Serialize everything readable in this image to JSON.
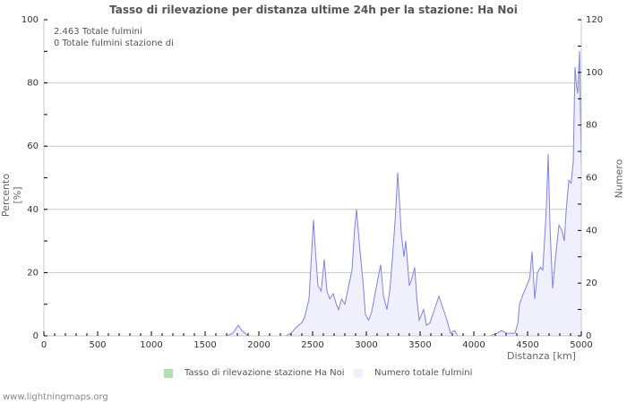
{
  "title": "Tasso di rilevazione per distanza ultime 24h per la stazione: Ha Noi",
  "info": {
    "line1": "2.463 Totale fulmini",
    "line2": "0 Totale fulmini stazione di"
  },
  "axes": {
    "y_left_label": "Percento   [%]",
    "y_right_label": "Numero",
    "x_label": "Distanza   [km]"
  },
  "legend": {
    "item1": {
      "label": "Tasso di rilevazione stazione Ha Noi",
      "color": "#b3e0b3"
    },
    "item2": {
      "label": "Numero totale fulmini",
      "color": "#eeeeff"
    }
  },
  "footer": "www.lightningmaps.org",
  "colors": {
    "line": "#8080ee",
    "fill": "#f0f0fc",
    "grid": "#c8c8c8",
    "axis": "#c8c8c8"
  },
  "chart_data": {
    "type": "area",
    "title": "Tasso di rilevazione per distanza ultime 24h per la stazione: Ha Noi",
    "xlabel": "Distanza [km]",
    "ylabel": "Percento [%]",
    "ylabel_right": "Numero",
    "xlim": [
      0,
      5000
    ],
    "ylim": [
      0,
      100
    ],
    "ylim_right": [
      0,
      120
    ],
    "x_ticks": [
      0,
      500,
      1000,
      1500,
      2000,
      2500,
      3000,
      3500,
      4000,
      4500,
      5000
    ],
    "y_ticks_left": [
      0,
      20,
      40,
      60,
      80,
      100
    ],
    "y_ticks_right": [
      0,
      20,
      40,
      60,
      80,
      100,
      120
    ],
    "grid": true,
    "legend_position": "bottom",
    "series": [
      {
        "name": "Tasso di rilevazione stazione Ha Noi",
        "axis": "left",
        "x": [],
        "values": []
      },
      {
        "name": "Numero totale fulmini",
        "axis": "right",
        "x": [
          0,
          1700,
          1758,
          1808,
          1842,
          1900,
          2250,
          2300,
          2342,
          2400,
          2425,
          2467,
          2508,
          2530,
          2550,
          2580,
          2608,
          2633,
          2660,
          2692,
          2720,
          2742,
          2770,
          2800,
          2830,
          2867,
          2890,
          2908,
          2942,
          2970,
          2992,
          3020,
          3050,
          3090,
          3133,
          3160,
          3192,
          3220,
          3242,
          3270,
          3292,
          3310,
          3325,
          3350,
          3367,
          3400,
          3425,
          3450,
          3470,
          3492,
          3533,
          3560,
          3592,
          3633,
          3675,
          3717,
          3750,
          3783,
          3820,
          3850,
          3900,
          4150,
          4217,
          4260,
          4300,
          4383,
          4410,
          4425,
          4450,
          4492,
          4520,
          4542,
          4567,
          4592,
          4620,
          4642,
          4660,
          4675,
          4692,
          4710,
          4733,
          4758,
          4792,
          4820,
          4842,
          4860,
          4883,
          4905,
          4925,
          4942,
          4955,
          4967,
          4983,
          4992,
          5000
        ],
        "values": [
          0,
          0,
          1,
          4,
          2,
          0,
          0,
          1,
          3,
          5,
          7,
          14,
          44,
          30,
          19,
          17,
          29,
          17,
          14,
          16,
          12,
          10,
          14,
          12,
          18,
          25,
          40,
          48,
          32,
          20,
          8,
          6,
          9,
          18,
          27,
          15,
          10,
          18,
          29,
          45,
          62,
          50,
          39,
          30,
          36,
          19,
          22,
          26,
          14,
          6,
          10,
          4,
          5,
          10,
          15,
          10,
          6,
          1,
          2,
          0,
          0,
          0,
          1,
          2,
          1,
          1,
          5,
          12,
          15,
          19,
          22,
          32,
          14,
          24,
          26,
          25,
          38,
          49,
          69,
          40,
          18,
          29,
          42,
          40,
          36,
          48,
          59,
          58,
          66,
          102,
          95,
          92,
          108,
          85,
          63
        ]
      }
    ]
  }
}
